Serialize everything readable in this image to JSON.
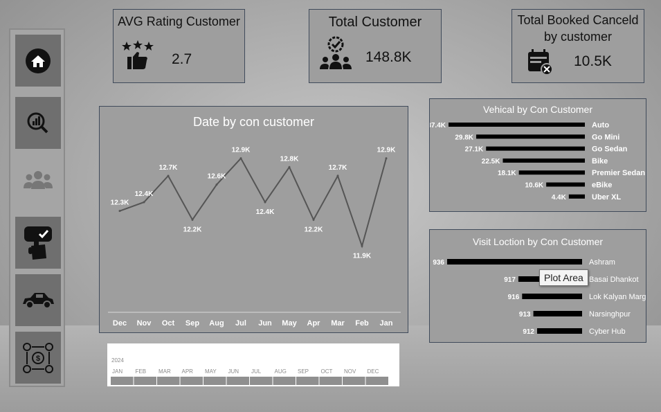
{
  "kpis": {
    "avg_rating": {
      "title": "AVG Rating Customer",
      "value": "2.7",
      "icon": "stars-thumbs-up-icon"
    },
    "total_customer": {
      "title": "Total Customer",
      "value": "148.8K",
      "icon": "team-badge-icon"
    },
    "booked_cancelled": {
      "title_line1": "Total Booked Canceld",
      "title_line2": "by customer",
      "value": "10.5K",
      "icon": "calendar-cancel-icon"
    }
  },
  "sidebar": {
    "items": [
      {
        "icon": "home-icon"
      },
      {
        "icon": "search-analytics-icon"
      },
      {
        "icon": "users-icon"
      },
      {
        "icon": "touch-check-icon"
      },
      {
        "icon": "car-icon"
      },
      {
        "icon": "money-flow-icon"
      }
    ]
  },
  "tooltip": {
    "text": "Plot Area"
  },
  "timeline": {
    "year": "2024",
    "months": [
      "JAN",
      "FEB",
      "MAR",
      "APR",
      "MAY",
      "JUN",
      "JUL",
      "AUG",
      "SEP",
      "OCT",
      "NOV",
      "DEC"
    ]
  },
  "colors": {
    "line": "#555555",
    "bars": "#000000",
    "panel": "#9e9e9e",
    "border": "#3f4a5a"
  },
  "chart_data": [
    {
      "type": "line",
      "title": "Date by con customer",
      "x": [
        "Dec",
        "Nov",
        "Oct",
        "Sep",
        "Aug",
        "Jul",
        "Jun",
        "May",
        "Apr",
        "Mar",
        "Feb",
        "Jan"
      ],
      "series": [
        {
          "values": [
            12.3,
            12.4,
            12.7,
            12.2,
            12.6,
            12.9,
            12.4,
            12.8,
            12.2,
            12.7,
            11.9,
            12.9
          ]
        }
      ],
      "labels": [
        "12.3K",
        "12.4K",
        "12.7K",
        "12.2K",
        "12.6K",
        "12.9K",
        "12.4K",
        "12.8K",
        "12.2K",
        "12.7K",
        "11.9K",
        "12.9K"
      ],
      "ylim": [
        11.8,
        13.0
      ]
    },
    {
      "type": "bar",
      "orientation": "horizontal",
      "title": "Vehical by Con Customer",
      "categories": [
        "Auto",
        "Go Mini",
        "Go Sedan",
        "Bike",
        "Premier Sedan",
        "eBike",
        "Uber XL"
      ],
      "values": [
        37.4,
        29.8,
        27.1,
        22.5,
        18.1,
        10.6,
        4.4
      ],
      "labels": [
        "37.4K",
        "29.8K",
        "27.1K",
        "22.5K",
        "18.1K",
        "10.6K",
        "4.4K"
      ]
    },
    {
      "type": "bar",
      "orientation": "horizontal",
      "title": "Visit Loction by Con Customer",
      "categories": [
        "Ashram",
        "Basai Dhankot",
        "Lok Kalyan Marg",
        "Narsinghpur",
        "Cyber Hub"
      ],
      "values": [
        936,
        917,
        916,
        913,
        912
      ],
      "labels": [
        "936",
        "917",
        "916",
        "913",
        "912"
      ]
    }
  ]
}
